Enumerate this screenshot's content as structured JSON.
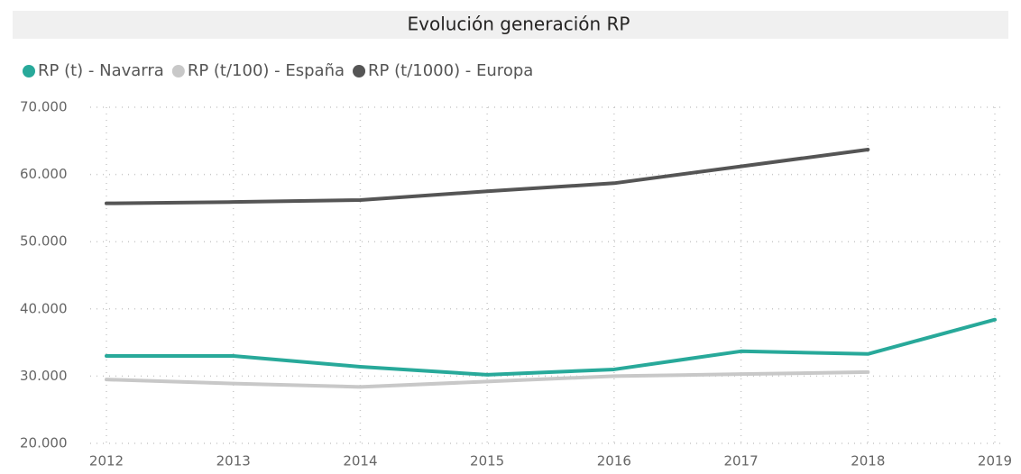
{
  "chart_data": {
    "type": "line",
    "title": "Evolución generación RP",
    "categories": [
      "2012",
      "2013",
      "2014",
      "2015",
      "2016",
      "2017",
      "2018",
      "2019"
    ],
    "series": [
      {
        "name": "RP (t) - Navarra",
        "color": "#28a99a",
        "values": [
          33000,
          33000,
          31400,
          30200,
          31000,
          33700,
          33300,
          38400
        ]
      },
      {
        "name": "RP (t/100) - España",
        "color": "#c8c8c8",
        "values": [
          29500,
          28900,
          28400,
          29200,
          30000,
          30300,
          30600,
          null
        ]
      },
      {
        "name": "RP (t/1000) - Europa",
        "color": "#555555",
        "values": [
          55700,
          55900,
          56200,
          57500,
          58700,
          61200,
          63700,
          null
        ]
      }
    ],
    "ylim": [
      20000,
      70000
    ],
    "yticks": [
      {
        "value": 20000,
        "label": "20.000"
      },
      {
        "value": 30000,
        "label": "30.000"
      },
      {
        "value": 40000,
        "label": "40.000"
      },
      {
        "value": 50000,
        "label": "50.000"
      },
      {
        "value": 60000,
        "label": "60.000"
      },
      {
        "value": 70000,
        "label": "70.000"
      }
    ],
    "grid": true,
    "legend": "top-left"
  }
}
